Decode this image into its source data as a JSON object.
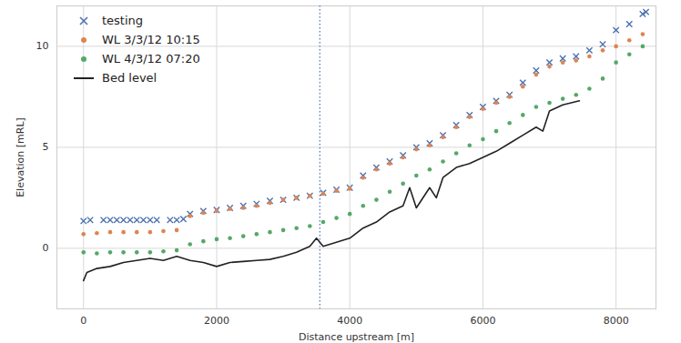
{
  "chart_data": {
    "type": "scatter",
    "x_label": "Distance upstream [m]",
    "y_label": "Elevation [mRL]",
    "xlim": [
      -400,
      8600
    ],
    "ylim": [
      -3,
      12
    ],
    "xticks": [
      0,
      2000,
      4000,
      6000,
      8000
    ],
    "yticks": [
      0,
      5,
      10
    ],
    "grid": true,
    "legend": "upper left",
    "reference_x": 3550,
    "series": [
      {
        "name": "testing",
        "color": "#4c72b0",
        "type": "scatter",
        "marker": "x",
        "x": [
          0,
          100,
          300,
          400,
          500,
          600,
          700,
          800,
          900,
          1000,
          1100,
          1300,
          1400,
          1500,
          1600,
          1800,
          2000,
          2200,
          2400,
          2600,
          2800,
          3000,
          3200,
          3400,
          3600,
          3800,
          4000,
          4200,
          4400,
          4600,
          4800,
          5000,
          5200,
          5400,
          5600,
          5800,
          6000,
          6200,
          6400,
          6600,
          6800,
          7000,
          7200,
          7400,
          7600,
          7800,
          8000,
          8200,
          8400,
          8450
        ],
        "values": [
          1.35,
          1.4,
          1.4,
          1.4,
          1.4,
          1.4,
          1.4,
          1.4,
          1.4,
          1.4,
          1.4,
          1.4,
          1.4,
          1.45,
          1.7,
          1.85,
          1.9,
          2.0,
          2.1,
          2.2,
          2.35,
          2.4,
          2.5,
          2.6,
          2.75,
          2.9,
          3.0,
          3.6,
          4.0,
          4.3,
          4.6,
          5.0,
          5.2,
          5.6,
          6.1,
          6.6,
          7.0,
          7.3,
          7.6,
          8.2,
          8.8,
          9.2,
          9.4,
          9.5,
          9.8,
          10.1,
          10.8,
          11.1,
          11.6,
          11.7
        ]
      },
      {
        "name": "WL 3/3/12 10:15",
        "color": "#dd8452",
        "type": "scatter",
        "marker": "circle",
        "x": [
          0,
          200,
          400,
          600,
          800,
          1000,
          1200,
          1400,
          1600,
          1800,
          2000,
          2200,
          2400,
          2600,
          2800,
          3000,
          3200,
          3400,
          3600,
          3800,
          4000,
          4200,
          4400,
          4600,
          4800,
          5000,
          5200,
          5400,
          5600,
          5800,
          6000,
          6200,
          6400,
          6600,
          6800,
          7000,
          7200,
          7400,
          7600,
          7800,
          8000,
          8200,
          8400
        ],
        "values": [
          0.7,
          0.75,
          0.8,
          0.8,
          0.8,
          0.8,
          0.85,
          0.9,
          1.6,
          1.75,
          1.85,
          1.95,
          2.0,
          2.1,
          2.25,
          2.4,
          2.5,
          2.6,
          2.7,
          2.85,
          2.95,
          3.5,
          3.9,
          4.2,
          4.5,
          4.9,
          5.1,
          5.5,
          6.0,
          6.5,
          6.9,
          7.2,
          7.5,
          8.0,
          8.6,
          9.0,
          9.2,
          9.3,
          9.5,
          9.8,
          10.0,
          10.3,
          10.6
        ]
      },
      {
        "name": "WL 4/3/12 07:20",
        "color": "#55a868",
        "type": "scatter",
        "marker": "circle",
        "x": [
          0,
          200,
          400,
          600,
          800,
          1000,
          1200,
          1400,
          1600,
          1800,
          2000,
          2200,
          2400,
          2600,
          2800,
          3000,
          3200,
          3400,
          3600,
          3800,
          4000,
          4200,
          4400,
          4600,
          4800,
          5000,
          5200,
          5400,
          5600,
          5800,
          6000,
          6200,
          6400,
          6600,
          6800,
          7000,
          7200,
          7400,
          7600,
          7800,
          8000,
          8200,
          8400
        ],
        "values": [
          -0.2,
          -0.25,
          -0.2,
          -0.2,
          -0.2,
          -0.2,
          -0.15,
          -0.1,
          0.2,
          0.35,
          0.45,
          0.5,
          0.6,
          0.7,
          0.8,
          0.9,
          1.0,
          1.1,
          1.3,
          1.5,
          1.7,
          2.1,
          2.4,
          2.8,
          3.2,
          3.6,
          3.9,
          4.3,
          4.7,
          5.1,
          5.4,
          5.8,
          6.2,
          6.6,
          7.0,
          7.2,
          7.4,
          7.6,
          7.9,
          8.4,
          9.2,
          9.6,
          10.0
        ]
      },
      {
        "name": "Bed level",
        "color": "#222222",
        "type": "line",
        "line_style": "solid",
        "x": [
          0,
          50,
          200,
          400,
          600,
          800,
          1000,
          1200,
          1400,
          1600,
          1800,
          2000,
          2200,
          2400,
          2600,
          2800,
          3000,
          3200,
          3400,
          3500,
          3600,
          3800,
          4000,
          4200,
          4400,
          4600,
          4800,
          4900,
          5000,
          5200,
          5300,
          5400,
          5600,
          5800,
          6000,
          6200,
          6400,
          6600,
          6800,
          6900,
          7000,
          7200,
          7450
        ],
        "values": [
          -1.6,
          -1.2,
          -1.0,
          -0.9,
          -0.7,
          -0.6,
          -0.5,
          -0.6,
          -0.4,
          -0.6,
          -0.7,
          -0.9,
          -0.7,
          -0.65,
          -0.6,
          -0.55,
          -0.4,
          -0.2,
          0.1,
          0.5,
          0.1,
          0.3,
          0.5,
          1.0,
          1.3,
          1.8,
          2.1,
          3.0,
          2.0,
          3.0,
          2.5,
          3.5,
          4.0,
          4.2,
          4.5,
          4.8,
          5.2,
          5.6,
          6.0,
          5.8,
          6.8,
          7.1,
          7.3
        ]
      }
    ]
  }
}
